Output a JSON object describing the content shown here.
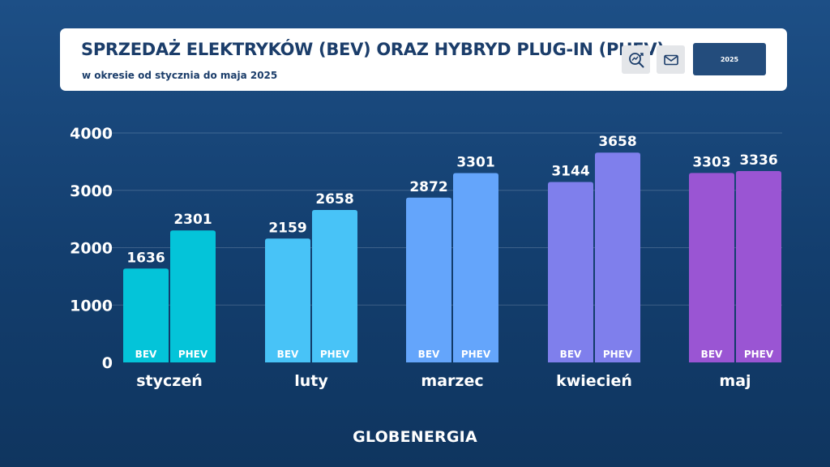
{
  "header": {
    "title": "SPRZEDAŻ ELEKTRYKÓW (BEV) ORAZ HYBRYD PLUG-IN (PHEV)",
    "subtitle": "w okresie od stycznia do maja 2025",
    "icons": [
      "zoom-analytics-icon",
      "mail-icon"
    ],
    "year_button": "2025"
  },
  "chart_data": {
    "type": "bar",
    "title": "SPRZEDAŻ ELEKTRYKÓW (BEV) ORAZ HYBRYD PLUG-IN (PHEV)",
    "subtitle": "w okresie od stycznia do maja 2025",
    "categories": [
      "styczeń",
      "luty",
      "marzec",
      "kwiecień",
      "maj"
    ],
    "series": [
      {
        "name": "BEV",
        "values": [
          1636,
          2159,
          2872,
          3144,
          3303
        ]
      },
      {
        "name": "PHEV",
        "values": [
          2301,
          2658,
          3301,
          3658,
          3336
        ]
      }
    ],
    "yticks": [
      "0",
      "1000",
      "2000",
      "3000",
      "4000"
    ],
    "ylim": [
      0,
      4000
    ],
    "grid": true,
    "legend": "inside-bars",
    "colors": [
      "#04c4d9",
      "#48c3f7",
      "#64a5fb",
      "#7f7fec",
      "#9a55d3"
    ]
  },
  "brand": "GLOBENERGIA"
}
